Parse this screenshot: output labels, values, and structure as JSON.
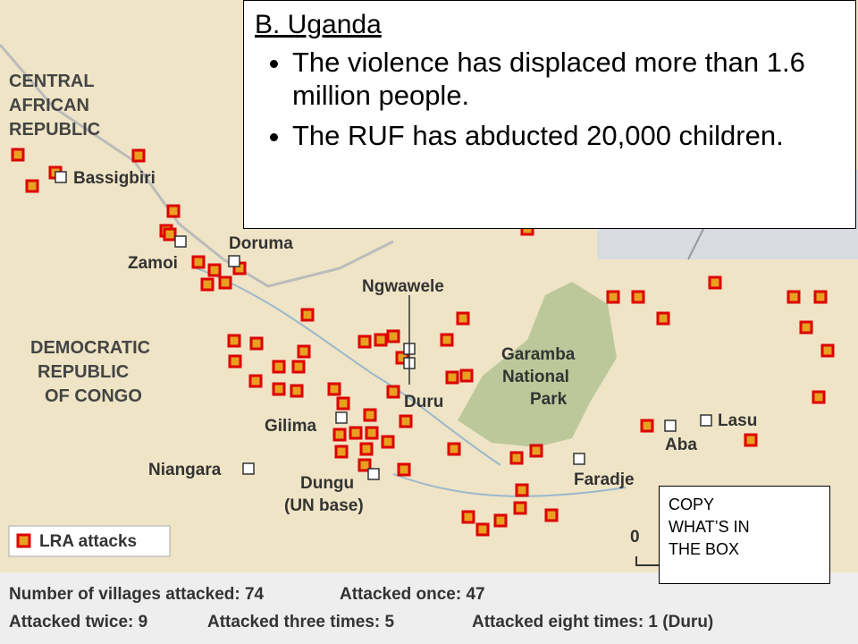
{
  "box": {
    "heading": "B. Uganda",
    "bullets": [
      "The violence has displaced more than 1.6 million people.",
      "The RUF has abducted 20,000 children."
    ]
  },
  "note": [
    "COPY",
    "WHAT’S IN",
    "THE BOX"
  ],
  "map": {
    "regions": [
      [
        "CENTRAL",
        "AFRICAN",
        "REPUBLIC"
      ],
      [
        "DEMOCRATIC",
        "REPUBLIC",
        "OF CONGO"
      ]
    ],
    "park": [
      "Garamba",
      "National",
      "Park"
    ],
    "places": [
      "Bassigbiri",
      "Doruma",
      "Zamoi",
      "Ngwawele",
      "Duru",
      "Gilima",
      "Niangara",
      "Faradje",
      "Aba",
      "Lasu"
    ],
    "dungu": [
      "Dungu",
      "(UN base)"
    ],
    "legend": "LRA attacks",
    "scale": "0"
  },
  "stats": [
    [
      "Number of villages attacked: 74",
      "Attacked once: 47"
    ],
    [
      "Attacked twice: 9",
      "Attacked three times: 5",
      "Attacked eight times: 1 (Duru)"
    ]
  ]
}
